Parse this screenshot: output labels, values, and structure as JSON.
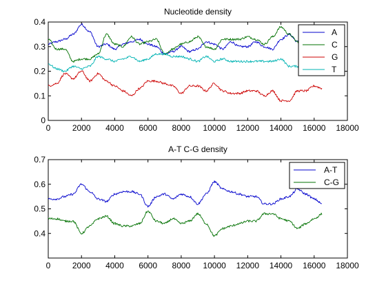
{
  "chart_data": [
    {
      "type": "line",
      "title": "Nucleotide density",
      "xlabel": "",
      "ylabel": "",
      "xlim": [
        0,
        18000
      ],
      "ylim": [
        0,
        0.4
      ],
      "x_ticks": [
        "0",
        "2000",
        "4000",
        "6000",
        "8000",
        "10000",
        "12000",
        "14000",
        "16000",
        "18000"
      ],
      "y_ticks": [
        "0",
        "0.1",
        "0.2",
        "0.3",
        "0.4"
      ],
      "legend_position": "top-right",
      "grid": false,
      "x": [
        0,
        500,
        1000,
        1500,
        2000,
        2500,
        3000,
        3500,
        4000,
        4500,
        5000,
        5500,
        6000,
        6500,
        7000,
        7500,
        8000,
        8500,
        9000,
        9500,
        10000,
        10500,
        11000,
        11500,
        12000,
        12500,
        13000,
        13500,
        14000,
        14500,
        15000,
        15500,
        16000,
        16500
      ],
      "series": [
        {
          "name": "A",
          "color": "#0000cc",
          "values": [
            0.31,
            0.32,
            0.33,
            0.35,
            0.39,
            0.36,
            0.3,
            0.31,
            0.29,
            0.31,
            0.32,
            0.33,
            0.31,
            0.3,
            0.27,
            0.28,
            0.3,
            0.28,
            0.29,
            0.32,
            0.31,
            0.29,
            0.32,
            0.3,
            0.3,
            0.32,
            0.3,
            0.29,
            0.33,
            0.35,
            0.32,
            null,
            null,
            null
          ]
        },
        {
          "name": "C",
          "color": "#007000",
          "values": [
            0.33,
            0.29,
            0.29,
            0.24,
            0.25,
            0.25,
            0.27,
            0.35,
            0.31,
            0.3,
            0.34,
            0.31,
            0.32,
            0.33,
            0.27,
            0.29,
            0.31,
            0.32,
            0.34,
            0.3,
            0.29,
            0.33,
            0.33,
            0.33,
            0.34,
            0.33,
            0.31,
            0.34,
            0.38,
            0.35,
            0.32,
            null,
            null,
            null
          ]
        },
        {
          "name": "G",
          "color": "#cc0000",
          "values": [
            0.14,
            0.15,
            0.19,
            0.17,
            0.2,
            0.16,
            0.19,
            0.16,
            0.14,
            0.12,
            0.1,
            0.13,
            0.16,
            0.16,
            0.15,
            0.14,
            0.11,
            0.14,
            0.14,
            0.12,
            0.15,
            0.12,
            0.11,
            0.11,
            0.12,
            0.12,
            0.1,
            0.12,
            0.08,
            0.08,
            0.12,
            0.12,
            0.14,
            0.13
          ]
        },
        {
          "name": "T",
          "color": "#00b3b3",
          "values": [
            0.23,
            0.21,
            0.2,
            0.22,
            0.21,
            0.22,
            0.26,
            0.25,
            0.24,
            0.25,
            0.26,
            0.24,
            0.25,
            0.27,
            0.27,
            0.26,
            0.26,
            0.25,
            0.24,
            0.26,
            0.24,
            0.25,
            0.24,
            0.24,
            0.24,
            0.24,
            0.24,
            0.24,
            0.25,
            0.22,
            0.22,
            null,
            null,
            null
          ]
        }
      ]
    },
    {
      "type": "line",
      "title": "A-T C-G density",
      "xlabel": "",
      "ylabel": "",
      "xlim": [
        0,
        18000
      ],
      "ylim": [
        0.3,
        0.7
      ],
      "x_ticks": [
        "0",
        "2000",
        "4000",
        "6000",
        "8000",
        "10000",
        "12000",
        "14000",
        "16000",
        "18000"
      ],
      "y_ticks": [
        "0.4",
        "0.5",
        "0.6",
        "0.7"
      ],
      "legend_position": "top-right",
      "grid": false,
      "x": [
        0,
        500,
        1000,
        1500,
        2000,
        2500,
        3000,
        3500,
        4000,
        4500,
        5000,
        5500,
        6000,
        6500,
        7000,
        7500,
        8000,
        8500,
        9000,
        9500,
        10000,
        10500,
        11000,
        11500,
        12000,
        12500,
        13000,
        13500,
        14000,
        14500,
        15000,
        15500,
        16000,
        16500
      ],
      "series": [
        {
          "name": "A-T",
          "color": "#0000cc",
          "values": [
            0.54,
            0.54,
            0.55,
            0.56,
            0.6,
            0.57,
            0.54,
            0.53,
            0.56,
            0.57,
            0.57,
            0.56,
            0.51,
            0.55,
            0.56,
            0.54,
            0.56,
            0.55,
            0.52,
            0.56,
            0.61,
            0.58,
            0.57,
            0.56,
            0.55,
            0.55,
            0.52,
            0.52,
            0.54,
            0.55,
            0.58,
            0.56,
            0.54,
            0.52
          ]
        },
        {
          "name": "C-G",
          "color": "#007000",
          "values": [
            0.46,
            0.46,
            0.45,
            0.45,
            0.4,
            0.43,
            0.46,
            0.47,
            0.44,
            0.43,
            0.43,
            0.44,
            0.49,
            0.45,
            0.44,
            0.46,
            0.44,
            0.45,
            0.48,
            0.44,
            0.39,
            0.42,
            0.43,
            0.44,
            0.45,
            0.45,
            0.48,
            0.48,
            0.46,
            0.45,
            0.42,
            0.44,
            0.46,
            0.48
          ]
        }
      ]
    }
  ]
}
